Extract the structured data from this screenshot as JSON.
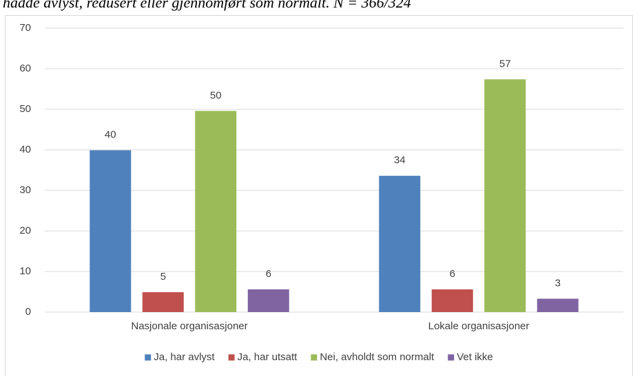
{
  "chart_data": {
    "type": "bar",
    "subtitle": "hadde avlyst, redusert eller gjennomført som normalt. N = 366/324",
    "categories": [
      "Nasjonale organisasjoner",
      "Lokale organisasjoner"
    ],
    "series": [
      {
        "name": "Ja, har avlyst",
        "color": "#4f81bd",
        "values": [
          39.9,
          33.6
        ],
        "value_labels": [
          "40",
          "34"
        ]
      },
      {
        "name": "Ja, har utsatt",
        "color": "#c0504d",
        "values": [
          4.9,
          5.6
        ],
        "value_labels": [
          "5",
          "6"
        ]
      },
      {
        "name": "Nei, avholdt som normalt",
        "color": "#9bbb59",
        "values": [
          49.6,
          57.4
        ],
        "value_labels": [
          "50",
          "57"
        ]
      },
      {
        "name": "Vet ikke",
        "color": "#8064a2",
        "values": [
          5.6,
          3.3
        ],
        "value_labels": [
          "6",
          "3"
        ]
      }
    ],
    "ylim": [
      0,
      70
    ],
    "yticks": [
      0,
      10,
      20,
      30,
      40,
      50,
      60,
      70
    ],
    "grid": true,
    "legend": "bottom"
  }
}
